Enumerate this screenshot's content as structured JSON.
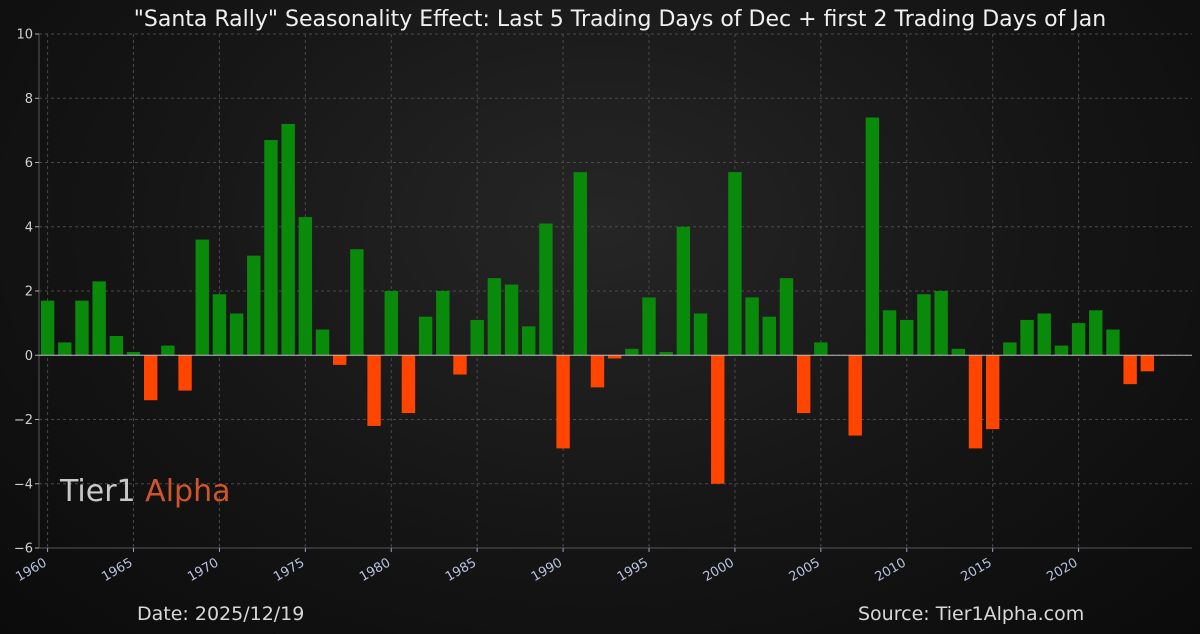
{
  "chart_data": {
    "type": "bar",
    "title": "\"Santa Rally\" Seasonality Effect: Last 5 Trading Days of Dec + first 2 Trading Days of Jan",
    "xlabel": "",
    "ylabel": "",
    "ylim": [
      -6,
      10
    ],
    "yticks": [
      -6,
      -4,
      -2,
      0,
      2,
      4,
      6,
      8,
      10
    ],
    "xticks": [
      1960,
      1965,
      1970,
      1975,
      1980,
      1985,
      1990,
      1995,
      2000,
      2005,
      2010,
      2015,
      2020
    ],
    "grid": true,
    "colors": {
      "positive": "#0a8a0a",
      "negative": "#ff4500"
    },
    "x": [
      1960,
      1961,
      1962,
      1963,
      1964,
      1965,
      1966,
      1967,
      1968,
      1969,
      1970,
      1971,
      1972,
      1973,
      1974,
      1975,
      1976,
      1977,
      1978,
      1979,
      1980,
      1981,
      1982,
      1983,
      1984,
      1985,
      1986,
      1987,
      1988,
      1989,
      1990,
      1991,
      1992,
      1993,
      1994,
      1995,
      1996,
      1997,
      1998,
      1999,
      2000,
      2001,
      2002,
      2003,
      2004,
      2005,
      2006,
      2007,
      2008,
      2009,
      2010,
      2011,
      2012,
      2013,
      2014,
      2015,
      2016,
      2017,
      2018,
      2019,
      2020,
      2021,
      2022,
      2023,
      2024,
      2025
    ],
    "values": [
      1.7,
      0.4,
      1.7,
      2.3,
      0.6,
      0.1,
      -1.4,
      0.3,
      -1.1,
      3.6,
      1.9,
      1.3,
      3.1,
      6.7,
      7.2,
      4.3,
      0.8,
      -0.3,
      3.3,
      -2.2,
      2.0,
      -1.8,
      1.2,
      2.0,
      -0.6,
      1.1,
      2.4,
      2.2,
      0.9,
      4.1,
      -2.9,
      5.7,
      -1.0,
      -0.1,
      0.2,
      1.8,
      0.1,
      4.0,
      1.3,
      -4.0,
      5.7,
      1.8,
      1.2,
      2.4,
      -1.8,
      0.4,
      null,
      -2.5,
      7.4,
      1.4,
      1.1,
      1.9,
      2.0,
      0.2,
      -2.9,
      -2.3,
      0.4,
      1.1,
      1.3,
      0.3,
      1.0,
      1.4,
      0.8,
      -0.9,
      -0.5,
      null
    ]
  },
  "watermark": {
    "word1": "Tier1",
    "word2": "Alpha"
  },
  "footer": {
    "date": "Date: 2025/12/19",
    "source": "Source: Tier1Alpha.com"
  }
}
